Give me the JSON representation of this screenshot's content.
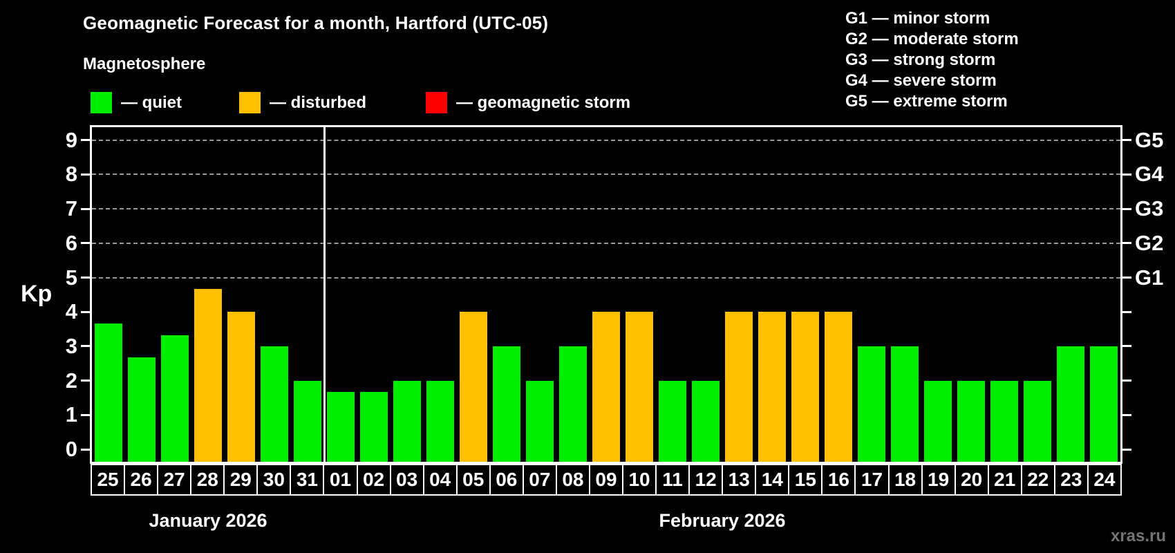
{
  "header": {
    "title": "Geomagnetic Forecast for a month, Hartford (UTC-05)",
    "subtitle": "Magnetosphere"
  },
  "legend": {
    "items": [
      {
        "key": "quiet",
        "label": "— quiet",
        "color": "#00ee00"
      },
      {
        "key": "disturbed",
        "label": "— disturbed",
        "color": "#ffc000"
      },
      {
        "key": "storm",
        "label": "— geomagnetic storm",
        "color": "#ff0000"
      }
    ]
  },
  "g_scale_legend": {
    "items": [
      "G1 — minor storm",
      "G2 — moderate storm",
      "G3 — strong storm",
      "G4 — severe storm",
      "G5 — extreme storm"
    ]
  },
  "chart_data": {
    "type": "bar",
    "title": "Geomagnetic Forecast for a month, Hartford (UTC-05)",
    "ylabel": "Kp",
    "ylim": [
      0,
      9.7
    ],
    "yticks": [
      0,
      1,
      2,
      3,
      4,
      5,
      6,
      7,
      8,
      9
    ],
    "gridlines": [
      5,
      6,
      7,
      8,
      9
    ],
    "grid_style": "dashed",
    "right_axis": [
      {
        "kp": 5,
        "label": "G1"
      },
      {
        "kp": 6,
        "label": "G2"
      },
      {
        "kp": 7,
        "label": "G3"
      },
      {
        "kp": 8,
        "label": "G4"
      },
      {
        "kp": 9,
        "label": "G5"
      }
    ],
    "status_colors": {
      "quiet": "#00ee00",
      "disturbed": "#ffc000",
      "storm": "#ff0000"
    },
    "months": [
      {
        "label": "January 2026",
        "days": [
          {
            "day": "25",
            "kp": 3.67,
            "status": "quiet"
          },
          {
            "day": "26",
            "kp": 2.67,
            "status": "quiet"
          },
          {
            "day": "27",
            "kp": 3.33,
            "status": "quiet"
          },
          {
            "day": "28",
            "kp": 4.67,
            "status": "disturbed"
          },
          {
            "day": "29",
            "kp": 4.0,
            "status": "disturbed"
          },
          {
            "day": "30",
            "kp": 3.0,
            "status": "quiet"
          },
          {
            "day": "31",
            "kp": 2.0,
            "status": "quiet"
          }
        ]
      },
      {
        "label": "February 2026",
        "days": [
          {
            "day": "01",
            "kp": 1.67,
            "status": "quiet"
          },
          {
            "day": "02",
            "kp": 1.67,
            "status": "quiet"
          },
          {
            "day": "03",
            "kp": 2.0,
            "status": "quiet"
          },
          {
            "day": "04",
            "kp": 2.0,
            "status": "quiet"
          },
          {
            "day": "05",
            "kp": 4.0,
            "status": "disturbed"
          },
          {
            "day": "06",
            "kp": 3.0,
            "status": "quiet"
          },
          {
            "day": "07",
            "kp": 2.0,
            "status": "quiet"
          },
          {
            "day": "08",
            "kp": 3.0,
            "status": "quiet"
          },
          {
            "day": "09",
            "kp": 4.0,
            "status": "disturbed"
          },
          {
            "day": "10",
            "kp": 4.0,
            "status": "disturbed"
          },
          {
            "day": "11",
            "kp": 2.0,
            "status": "quiet"
          },
          {
            "day": "12",
            "kp": 2.0,
            "status": "quiet"
          },
          {
            "day": "13",
            "kp": 4.0,
            "status": "disturbed"
          },
          {
            "day": "14",
            "kp": 4.0,
            "status": "disturbed"
          },
          {
            "day": "15",
            "kp": 4.0,
            "status": "disturbed"
          },
          {
            "day": "16",
            "kp": 4.0,
            "status": "disturbed"
          },
          {
            "day": "17",
            "kp": 3.0,
            "status": "quiet"
          },
          {
            "day": "18",
            "kp": 3.0,
            "status": "quiet"
          },
          {
            "day": "19",
            "kp": 2.0,
            "status": "quiet"
          },
          {
            "day": "20",
            "kp": 2.0,
            "status": "quiet"
          },
          {
            "day": "21",
            "kp": 2.0,
            "status": "quiet"
          },
          {
            "day": "22",
            "kp": 2.0,
            "status": "quiet"
          },
          {
            "day": "23",
            "kp": 3.0,
            "status": "quiet"
          },
          {
            "day": "24",
            "kp": 3.0,
            "status": "quiet"
          }
        ]
      }
    ]
  },
  "watermark": "xras.ru"
}
